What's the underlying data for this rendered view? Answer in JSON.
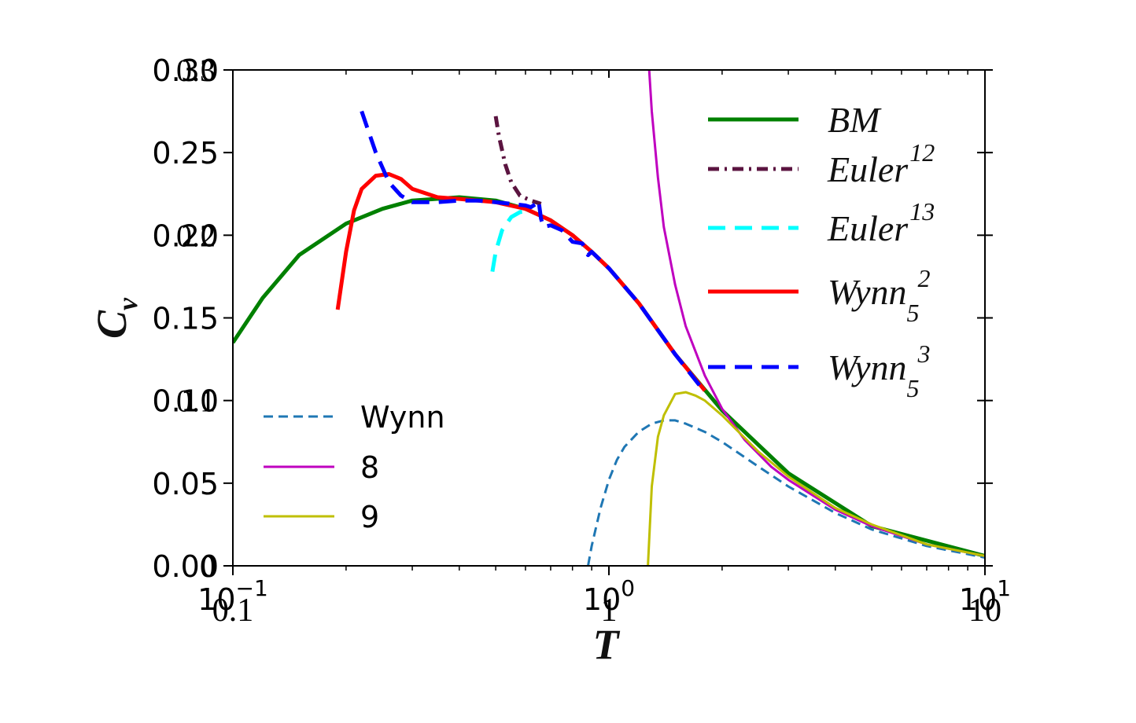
{
  "chart_data": {
    "type": "line",
    "title": "",
    "xlabel": "T",
    "ylabel": "C_v",
    "x_scale": "log",
    "xlim": [
      0.1,
      10
    ],
    "ylim": [
      0,
      0.3
    ],
    "grid": false,
    "x_ticks": [
      {
        "value": 0.1,
        "label": "10",
        "exp": "−1",
        "label2": "0.1"
      },
      {
        "value": 1,
        "label": "10",
        "exp": "0",
        "label2": "1"
      },
      {
        "value": 10,
        "label": "10",
        "exp": "1",
        "label2": "10"
      }
    ],
    "y_ticks": [
      {
        "value": 0.0,
        "label": "0.00",
        "label2": "0"
      },
      {
        "value": 0.05,
        "label": "0.05",
        "label2": ""
      },
      {
        "value": 0.1,
        "label": "0.10",
        "label2": "0.1"
      },
      {
        "value": 0.15,
        "label": "0.15",
        "label2": ""
      },
      {
        "value": 0.2,
        "label": "0.20",
        "label2": "0.2"
      },
      {
        "value": 0.25,
        "label": "0.25",
        "label2": ""
      },
      {
        "value": 0.3,
        "label": "0.30",
        "label2": "0.3"
      }
    ],
    "legend_right": {
      "placement": "top-right",
      "entries": [
        {
          "series": 0,
          "base": "BM",
          "sub": "",
          "sup": ""
        },
        {
          "series": 1,
          "base": "Euler",
          "sub": "",
          "sup": "12"
        },
        {
          "series": 2,
          "base": "Euler",
          "sub": "",
          "sup": "13"
        },
        {
          "series": 3,
          "base": "Wynn",
          "sub": "5",
          "sup": "2"
        },
        {
          "series": 4,
          "base": "Wynn",
          "sub": "5",
          "sup": "3"
        }
      ]
    },
    "legend_left": {
      "placement": "lower-left",
      "entries": [
        {
          "series": 5,
          "label": "Wynn"
        },
        {
          "series": 6,
          "label": "8"
        },
        {
          "series": 7,
          "label": "9"
        }
      ]
    },
    "series": [
      {
        "name": "BM",
        "color": "#008000",
        "style": "solid",
        "x": [
          0.1,
          0.12,
          0.15,
          0.2,
          0.25,
          0.3,
          0.4,
          0.5,
          0.6,
          0.7,
          0.8,
          0.9,
          1.0,
          1.2,
          1.5,
          2,
          3,
          5,
          10
        ],
        "y": [
          0.135,
          0.162,
          0.188,
          0.207,
          0.216,
          0.221,
          0.223,
          0.221,
          0.216,
          0.209,
          0.2,
          0.19,
          0.18,
          0.159,
          0.128,
          0.094,
          0.056,
          0.024,
          0.006
        ]
      },
      {
        "name": "Euler^12",
        "color": "#5b1440",
        "style": "dashdot",
        "x": [
          0.5,
          0.51,
          0.53,
          0.55,
          0.58,
          0.62,
          0.66
        ],
        "y": [
          0.272,
          0.26,
          0.243,
          0.232,
          0.224,
          0.221,
          0.219
        ]
      },
      {
        "name": "Euler^13",
        "color": "#00ffff",
        "style": "dashed",
        "x": [
          0.49,
          0.5,
          0.52,
          0.55,
          0.58,
          0.62
        ],
        "y": [
          0.178,
          0.19,
          0.203,
          0.211,
          0.214,
          0.215
        ]
      },
      {
        "name": "Wynn_5^2",
        "color": "#ff0000",
        "style": "solid",
        "x": [
          0.19,
          0.2,
          0.21,
          0.22,
          0.24,
          0.26,
          0.28,
          0.3,
          0.35,
          0.4,
          0.5,
          0.6,
          0.7,
          0.8,
          0.9,
          1.0,
          1.2,
          1.5,
          1.8
        ],
        "y": [
          0.155,
          0.19,
          0.215,
          0.228,
          0.236,
          0.237,
          0.234,
          0.228,
          0.223,
          0.222,
          0.22,
          0.216,
          0.209,
          0.2,
          0.19,
          0.18,
          0.159,
          0.128,
          0.106
        ]
      },
      {
        "name": "Wynn_5^3",
        "color": "#0000ff",
        "style": "dashed",
        "x": [
          0.22,
          0.24,
          0.26,
          0.28,
          0.3,
          0.35,
          0.4,
          0.45,
          0.5,
          0.55,
          0.6,
          0.62,
          0.64,
          0.65,
          0.66,
          0.67,
          0.7,
          0.75,
          0.8,
          0.85,
          0.88,
          0.9,
          1.0,
          1.2,
          1.5,
          1.8
        ],
        "y": [
          0.275,
          0.25,
          0.232,
          0.224,
          0.22,
          0.22,
          0.221,
          0.221,
          0.22,
          0.219,
          0.218,
          0.217,
          0.219,
          0.221,
          0.21,
          0.205,
          0.206,
          0.203,
          0.196,
          0.195,
          0.188,
          0.19,
          0.18,
          0.159,
          0.128,
          0.105
        ]
      },
      {
        "name": "Wynn",
        "color": "#1f77b4",
        "style": "dashed",
        "x": [
          0.88,
          0.9,
          0.95,
          1.0,
          1.05,
          1.1,
          1.2,
          1.3,
          1.4,
          1.5,
          1.6,
          1.8,
          2.0,
          2.5,
          3,
          4,
          5,
          7,
          10
        ],
        "y": [
          0.0,
          0.012,
          0.035,
          0.052,
          0.064,
          0.072,
          0.081,
          0.086,
          0.088,
          0.088,
          0.086,
          0.081,
          0.075,
          0.06,
          0.048,
          0.032,
          0.022,
          0.012,
          0.005
        ]
      },
      {
        "name": "8",
        "color": "#bf00bf",
        "style": "solid",
        "x": [
          1.28,
          1.3,
          1.35,
          1.4,
          1.5,
          1.6,
          1.8,
          2.0,
          2.3,
          2.7,
          3,
          4,
          5,
          7,
          10
        ],
        "y": [
          0.3,
          0.275,
          0.235,
          0.205,
          0.17,
          0.145,
          0.115,
          0.095,
          0.076,
          0.06,
          0.052,
          0.034,
          0.024,
          0.013,
          0.006
        ]
      },
      {
        "name": "9",
        "color": "#bfbf00",
        "style": "solid",
        "x": [
          1.27,
          1.3,
          1.35,
          1.4,
          1.5,
          1.6,
          1.7,
          1.8,
          2.0,
          2.5,
          3,
          4,
          5,
          7,
          10
        ],
        "y": [
          0.0,
          0.048,
          0.078,
          0.091,
          0.104,
          0.105,
          0.103,
          0.1,
          0.091,
          0.069,
          0.054,
          0.035,
          0.025,
          0.013,
          0.006
        ]
      }
    ]
  }
}
